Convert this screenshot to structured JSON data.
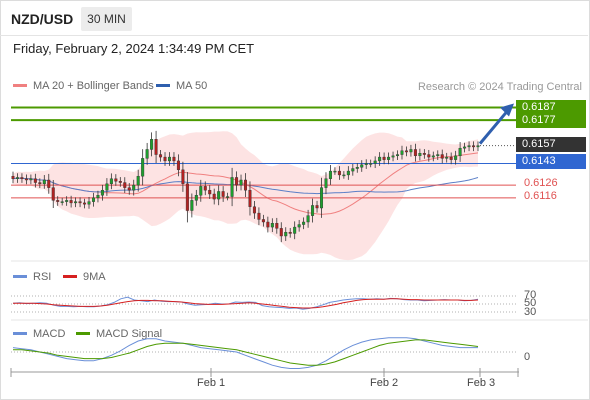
{
  "header": {
    "pair": "NZD/USD",
    "timeframe": "30 MIN"
  },
  "datetime": "Friday, February 2, 2024 1:34:49 PM CET",
  "legend": {
    "ma20_label": "MA 20 + Bollinger Bands",
    "ma50_label": "MA 50",
    "credit": "Research © 2024 Trading Central",
    "rsi_label": "RSI",
    "rsi_ma_label": "9MA",
    "macd_label": "MACD",
    "macd_signal_label": "MACD Signal"
  },
  "levels": {
    "resistance_2": "0.6187",
    "resistance_1": "0.6177",
    "current": "0.6157",
    "pivot": "0.6143",
    "support_1": "0.6126",
    "support_2": "0.6116"
  },
  "rsi_levels": [
    "70",
    "50",
    "30"
  ],
  "macd_level": "0",
  "x_ticks": [
    "Feb 1",
    "Feb 2",
    "Feb 3"
  ],
  "colors": {
    "resistance": "#4c9a00",
    "pivot": "#2f66d1",
    "support": "#e05252",
    "current": "#333333",
    "candle_up": "#1e9e2e",
    "candle_down": "#b22222",
    "bollinger_fill": "#fde0e0",
    "ma20": "#f08080",
    "ma50": "#5b7fc7",
    "rsi": "#6a8fd8",
    "rsi_ma": "#d62020",
    "macd": "#6a8fd8",
    "macd_signal": "#4c9a00",
    "arrow": "#2f5fae"
  },
  "chart_data": {
    "type": "candlestick",
    "ylim": [
      0.6075,
      0.6196
    ],
    "close": [
      0.6131,
      0.6132,
      0.6131,
      0.613,
      0.6131,
      0.6128,
      0.6127,
      0.613,
      0.6124,
      0.6114,
      0.6113,
      0.6113,
      0.6114,
      0.6112,
      0.6113,
      0.6112,
      0.6111,
      0.6113,
      0.6116,
      0.6118,
      0.6122,
      0.6127,
      0.6131,
      0.6129,
      0.6128,
      0.6124,
      0.6122,
      0.6126,
      0.6133,
      0.6147,
      0.6154,
      0.6162,
      0.615,
      0.6148,
      0.6145,
      0.6148,
      0.6145,
      0.6138,
      0.6127,
      0.6106,
      0.6114,
      0.6118,
      0.6125,
      0.6122,
      0.6119,
      0.6115,
      0.6121,
      0.6117,
      0.6117,
      0.6132,
      0.6126,
      0.613,
      0.6122,
      0.6109,
      0.6104,
      0.6099,
      0.6097,
      0.6093,
      0.6096,
      0.6092,
      0.6086,
      0.6089,
      0.6088,
      0.6093,
      0.6095,
      0.6097,
      0.6102,
      0.611,
      0.6108,
      0.6124,
      0.6131,
      0.6137,
      0.6137,
      0.6134,
      0.6134,
      0.6137,
      0.6139,
      0.614,
      0.6142,
      0.6143,
      0.6143,
      0.6145,
      0.6148,
      0.6146,
      0.6148,
      0.6149,
      0.615,
      0.6153,
      0.6152,
      0.6154,
      0.6149,
      0.6151,
      0.615,
      0.6148,
      0.6149,
      0.615,
      0.6147,
      0.6148,
      0.6146,
      0.6149,
      0.6155,
      0.6156,
      0.6157,
      0.6156,
      0.6157
    ]
  },
  "rsi_data": [
    52,
    53,
    51,
    52,
    53,
    52,
    47,
    44,
    44,
    43,
    44,
    43,
    43,
    45,
    48,
    54,
    63,
    67,
    60,
    58,
    56,
    60,
    57,
    56,
    56,
    55,
    50,
    47,
    48,
    49,
    52,
    50,
    50,
    55,
    54,
    55,
    54,
    46,
    43,
    42,
    41,
    39,
    40,
    37,
    39,
    43,
    48,
    54,
    57,
    60,
    62,
    63,
    63,
    62,
    63,
    62,
    64,
    63,
    61,
    60,
    60,
    58,
    59,
    60,
    61,
    60,
    60,
    58,
    59,
    62
  ],
  "rsi_ma_data": [
    52,
    52,
    52,
    52,
    51,
    50,
    48,
    47,
    46,
    45,
    44,
    44,
    44,
    45,
    47,
    50,
    53,
    56,
    58,
    59,
    59,
    58,
    58,
    57,
    56,
    55,
    53,
    51,
    50,
    49,
    49,
    49,
    50,
    51,
    52,
    53,
    52,
    50,
    48,
    46,
    44,
    42,
    41,
    40,
    40,
    41,
    43,
    46,
    49,
    53,
    56,
    59,
    61,
    62,
    62,
    62,
    63,
    63,
    62,
    61,
    61,
    60,
    60,
    60,
    60,
    60,
    60,
    59,
    59,
    60
  ],
  "macd_data": [
    0.4,
    0.3,
    0.2,
    0.0,
    -0.2,
    -0.4,
    -0.6,
    -0.7,
    -0.8,
    -0.8,
    -0.6,
    -0.3,
    0.1,
    0.6,
    1.0,
    1.2,
    1.2,
    1.0,
    0.9,
    0.8,
    0.6,
    0.4,
    0.3,
    0.2,
    0.1,
    0.0,
    -0.3,
    -0.6,
    -0.9,
    -1.2,
    -1.4,
    -1.5,
    -1.5,
    -1.4,
    -1.2,
    -0.8,
    -0.3,
    0.2,
    0.6,
    0.9,
    1.1,
    1.2,
    1.3,
    1.3,
    1.3,
    1.2,
    1.0,
    0.8,
    0.6,
    0.5,
    0.4,
    0.4,
    0.4
  ],
  "macd_signal_data": [
    0.2,
    0.2,
    0.1,
    0.0,
    -0.1,
    -0.3,
    -0.4,
    -0.5,
    -0.6,
    -0.6,
    -0.6,
    -0.5,
    -0.3,
    -0.1,
    0.2,
    0.5,
    0.7,
    0.8,
    0.8,
    0.8,
    0.7,
    0.6,
    0.5,
    0.4,
    0.3,
    0.2,
    0.0,
    -0.2,
    -0.4,
    -0.6,
    -0.8,
    -1.0,
    -1.1,
    -1.2,
    -1.2,
    -1.1,
    -0.9,
    -0.6,
    -0.3,
    0.0,
    0.3,
    0.6,
    0.8,
    0.9,
    1.0,
    1.1,
    1.1,
    1.0,
    0.9,
    0.8,
    0.7,
    0.6,
    0.5
  ]
}
